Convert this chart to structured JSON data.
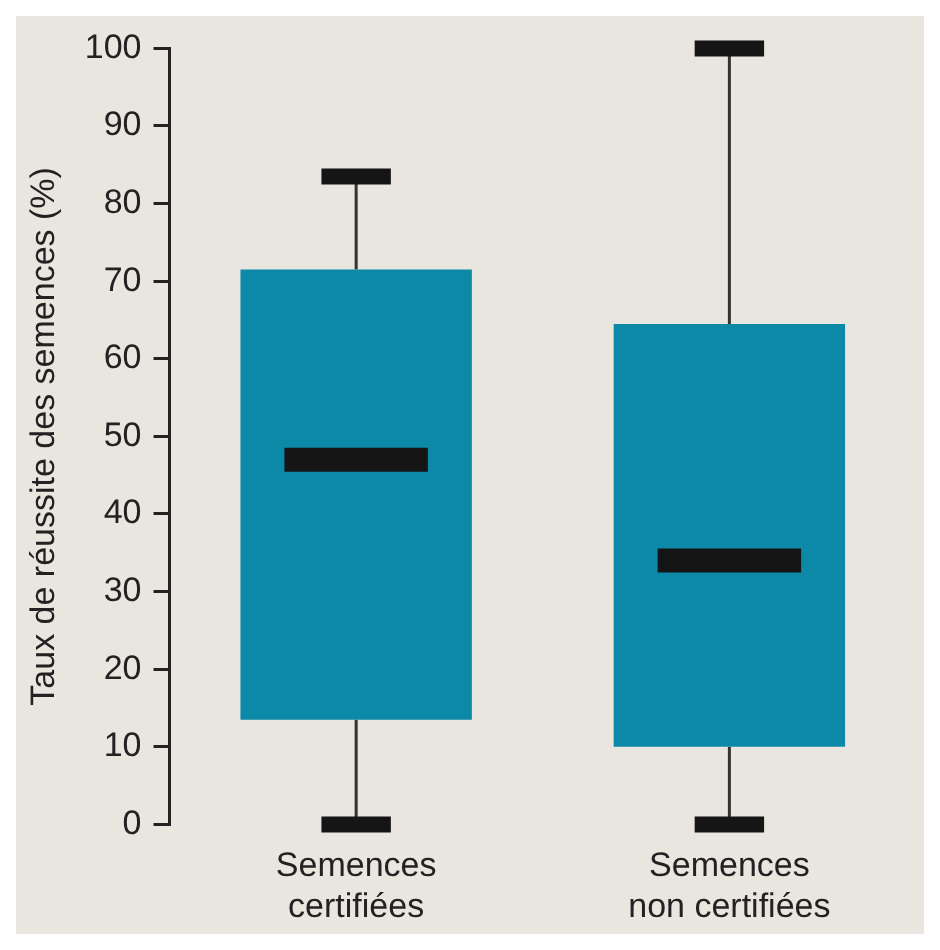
{
  "chart_data": {
    "type": "box",
    "categories": [
      "Semences certifiées",
      "Semences non certifiées"
    ],
    "color": "#0b89a7",
    "ylabel": "Taux de réussite des semences (%)",
    "ylim": [
      0,
      100
    ],
    "yticks": [
      0,
      10,
      20,
      30,
      40,
      50,
      60,
      70,
      80,
      90,
      100
    ],
    "grid": false,
    "boxes": [
      {
        "low": 0,
        "q1": 13.5,
        "median": 47,
        "q3": 71.5,
        "high": 83.5
      },
      {
        "low": 0,
        "q1": 10,
        "median": 34,
        "q3": 64.5,
        "high": 100
      }
    ]
  }
}
